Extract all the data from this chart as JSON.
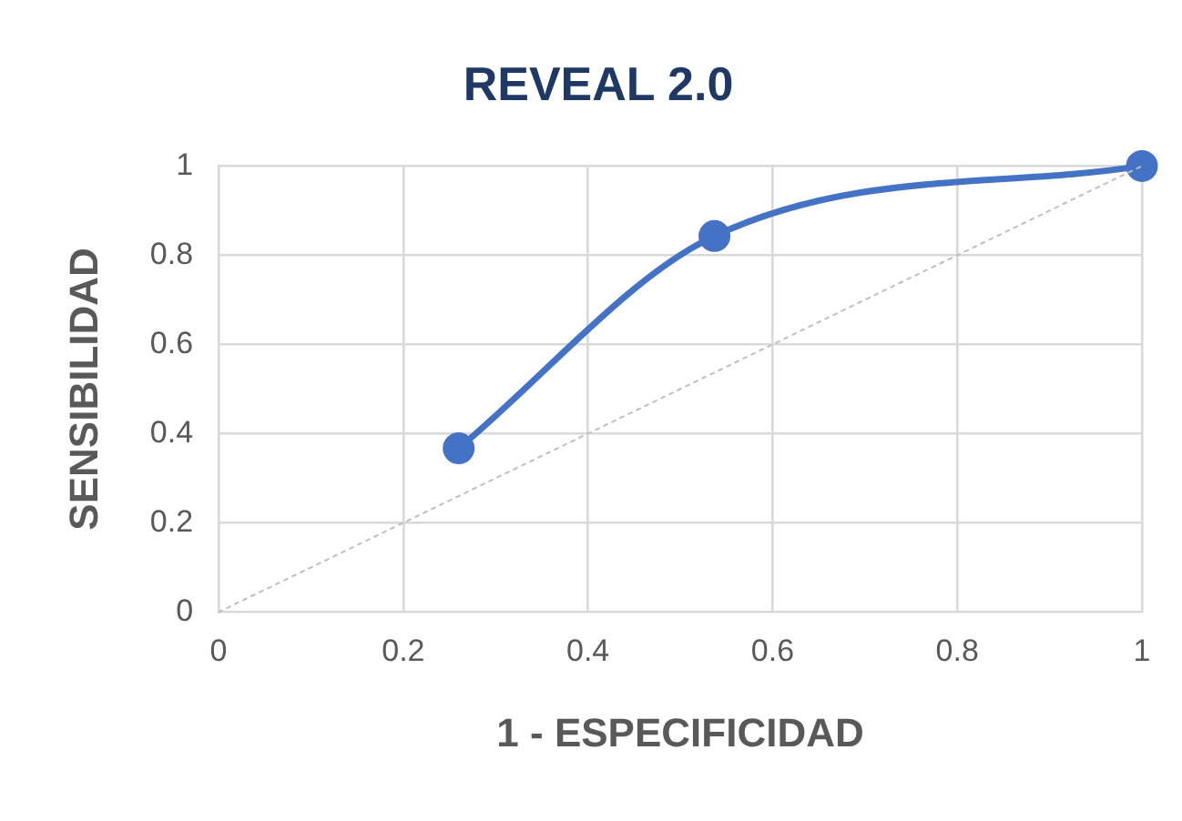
{
  "chart_data": {
    "type": "scatter",
    "title": "REVEAL 2.0",
    "xlabel": "1 - ESPECIFICIDAD",
    "ylabel": "SENSIBILIDAD",
    "xlim": [
      0,
      1
    ],
    "xticks": [
      0,
      0.2,
      0.4,
      0.6,
      0.8,
      1
    ],
    "ylim": [
      0,
      1
    ],
    "yticks": [
      0,
      0.2,
      0.4,
      0.6,
      0.8,
      1
    ],
    "grid": true,
    "legend": false,
    "series": [
      {
        "type": "line",
        "color": "#bfbfbf",
        "x": [
          0,
          1
        ],
        "values": [
          0,
          1
        ],
        "marker": "none",
        "line_style": "dotted"
      },
      {
        "type": "line",
        "color": "#4472c4",
        "x": [
          0.26,
          0.537,
          1
        ],
        "values": [
          0.367,
          0.843,
          1
        ],
        "marker": "circle",
        "line_style": "solid"
      }
    ]
  }
}
